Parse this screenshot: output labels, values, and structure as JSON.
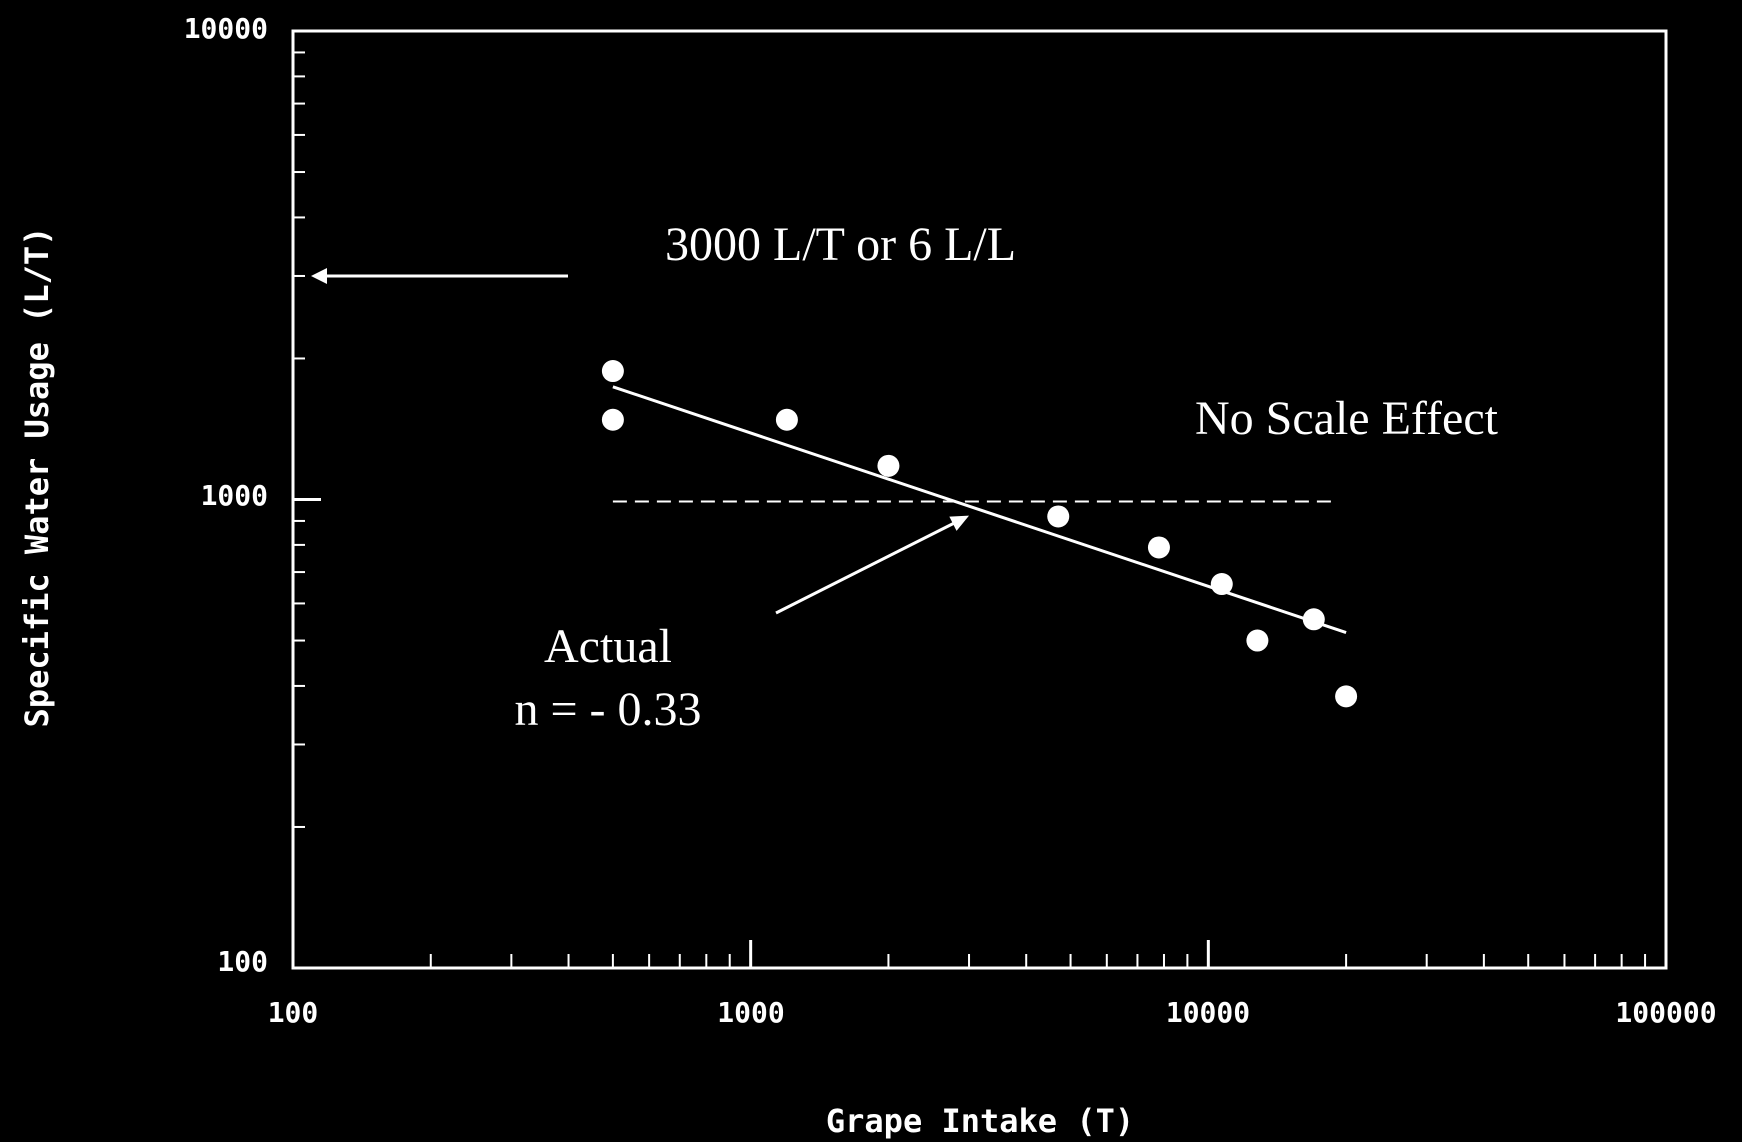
{
  "chart_data": {
    "type": "scatter",
    "title": "",
    "xlabel": "Grape Intake (T)",
    "ylabel": "Specific Water Usage (L/T)",
    "x_scale": "log",
    "y_scale": "log",
    "xlim": [
      100,
      100000
    ],
    "ylim": [
      100,
      10000
    ],
    "x_tick_labels": [
      "100",
      "1000",
      "10000",
      "100000"
    ],
    "y_tick_labels": [
      "100",
      "1000",
      "10000"
    ],
    "grid": false,
    "colors": {
      "background": "#000000",
      "foreground": "#ffffff"
    },
    "points": [
      {
        "x": 500,
        "y": 1880
      },
      {
        "x": 500,
        "y": 1480
      },
      {
        "x": 1200,
        "y": 1480
      },
      {
        "x": 2000,
        "y": 1180
      },
      {
        "x": 4700,
        "y": 920
      },
      {
        "x": 7800,
        "y": 790
      },
      {
        "x": 10700,
        "y": 660
      },
      {
        "x": 12800,
        "y": 500
      },
      {
        "x": 17000,
        "y": 555
      },
      {
        "x": 20000,
        "y": 380
      }
    ],
    "trend_line": {
      "x": [
        500,
        20000
      ],
      "y": [
        1740,
        520
      ],
      "style": "solid"
    },
    "reference_line": {
      "x": [
        500,
        19000
      ],
      "y": [
        990,
        990
      ],
      "style": "dashed"
    },
    "annotations": {
      "reference_text": "3000 L/T or 6 L/L",
      "reference_arrow_value": 3000,
      "no_scale": "No Scale Effect",
      "actual_line1": "Actual",
      "actual_line2": "n = - 0.33",
      "actual_arrow_target": {
        "x": 3000,
        "y": 980
      }
    }
  }
}
